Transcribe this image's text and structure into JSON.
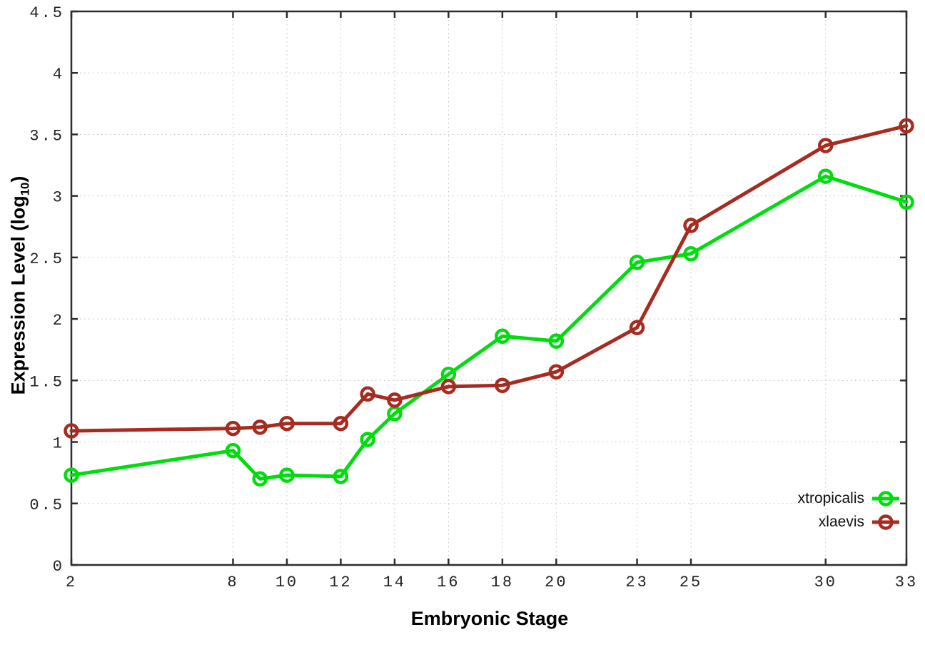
{
  "chart_data": {
    "type": "line",
    "title": "",
    "xlabel": "Embryonic Stage",
    "ylabel": "Expression Level (log10)",
    "ylabel_prefix": "Expression Level (log",
    "ylabel_subscript": "10",
    "ylabel_suffix": ")",
    "xlim": [
      2,
      33
    ],
    "ylim": [
      0,
      4.5
    ],
    "x_ticks": [
      2,
      8,
      10,
      12,
      14,
      16,
      18,
      20,
      23,
      25,
      30,
      33
    ],
    "y_ticks": [
      0,
      0.5,
      1,
      1.5,
      2,
      2.5,
      3,
      3.5,
      4,
      4.5
    ],
    "grid": true,
    "tick_mirror": true,
    "legend_position": "bottom-right-inside",
    "x": [
      2,
      8,
      9,
      10,
      12,
      13,
      14,
      16,
      18,
      20,
      23,
      25,
      30,
      33
    ],
    "series": [
      {
        "name": "xtropicalis",
        "color": "#00dc0e",
        "marker": "open-circle",
        "values": [
          0.73,
          0.93,
          0.7,
          0.73,
          0.72,
          1.02,
          1.23,
          1.55,
          1.86,
          1.82,
          2.46,
          2.53,
          3.16,
          2.95
        ]
      },
      {
        "name": "xlaevis",
        "color": "#a62c21",
        "marker": "open-circle",
        "values": [
          1.09,
          1.11,
          1.12,
          1.15,
          1.15,
          1.39,
          1.34,
          1.45,
          1.46,
          1.57,
          1.93,
          2.76,
          3.41,
          3.57
        ]
      }
    ],
    "colors": {
      "axis": "#2d2d2d",
      "grid": "#bdbdbd",
      "tick_text": "#222222",
      "label_text": "#000000",
      "background": "#ffffff"
    }
  }
}
